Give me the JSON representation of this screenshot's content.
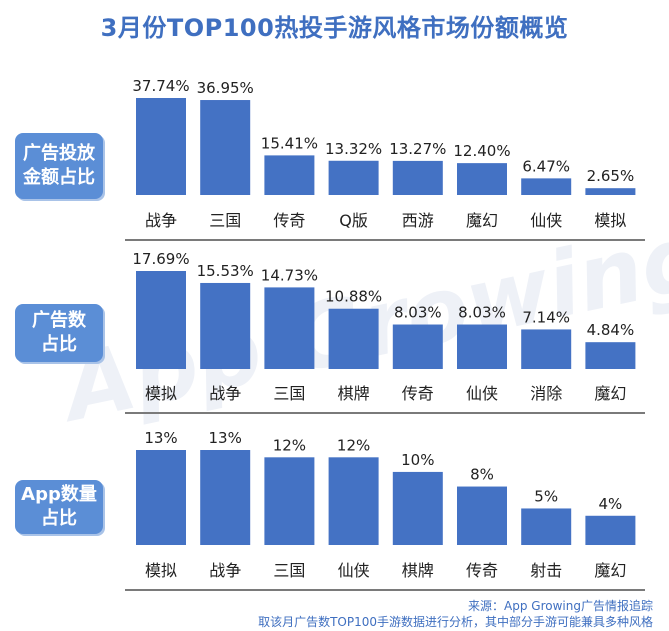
{
  "title": "3月份TOP100热投手游风格市场份额概览",
  "watermark": "App Growing",
  "chart_data": [
    {
      "type": "bar",
      "label": "广告投放\n金额占比",
      "categories": [
        "战争",
        "三国",
        "传奇",
        "Q版",
        "西游",
        "魔幻",
        "仙侠",
        "模拟"
      ],
      "values": [
        37.74,
        36.95,
        15.41,
        13.32,
        13.27,
        12.4,
        6.47,
        2.65
      ],
      "value_labels": [
        "37.74%",
        "36.95%",
        "15.41%",
        "13.32%",
        "13.27%",
        "12.40%",
        "6.47%",
        "2.65%"
      ],
      "ylim": [
        0,
        37.74
      ]
    },
    {
      "type": "bar",
      "label": "广告数\n占比",
      "categories": [
        "模拟",
        "战争",
        "三国",
        "棋牌",
        "传奇",
        "仙侠",
        "消除",
        "魔幻"
      ],
      "values": [
        17.69,
        15.53,
        14.73,
        10.88,
        8.03,
        8.03,
        7.14,
        4.84
      ],
      "value_labels": [
        "17.69%",
        "15.53%",
        "14.73%",
        "10.88%",
        "8.03%",
        "8.03%",
        "7.14%",
        "4.84%"
      ],
      "ylim": [
        0,
        17.69
      ]
    },
    {
      "type": "bar",
      "label": "App数量\n占比",
      "categories": [
        "模拟",
        "战争",
        "三国",
        "仙侠",
        "棋牌",
        "传奇",
        "射击",
        "魔幻"
      ],
      "values": [
        13,
        13,
        12,
        12,
        10,
        8,
        5,
        4
      ],
      "value_labels": [
        "13%",
        "13%",
        "12%",
        "12%",
        "10%",
        "8%",
        "5%",
        "4%"
      ],
      "ylim": [
        0,
        13
      ]
    }
  ],
  "colors": {
    "bar": "#4472c4",
    "title": "#3f6fc0",
    "label_bg": "#5b8ed6",
    "axis": "#7a7a7a",
    "text": "#222222"
  },
  "footer": {
    "line1": "来源：App Growing广告情报追踪",
    "line2": "取该月广告数TOP100手游数据进行分析，其中部分手游可能兼具多种风格"
  }
}
